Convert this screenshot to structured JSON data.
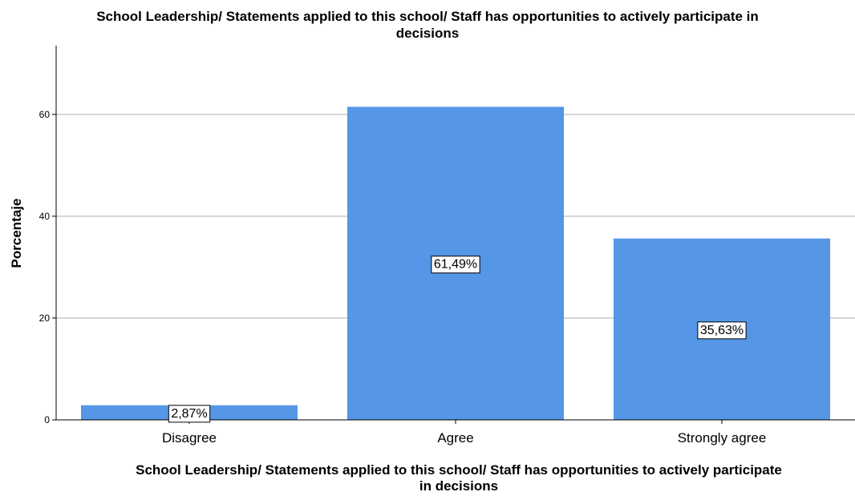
{
  "chart_data": {
    "type": "bar",
    "title": "School Leadership/ Statements applied to this school/ Staff has opportunities to actively participate in decisions",
    "title_lines": [
      "School Leadership/ Statements applied to this school/ Staff has opportunities to actively participate in",
      "decisions"
    ],
    "xlabel": "School Leadership/ Statements applied to this school/ Staff has opportunities to actively participate in decisions",
    "xlabel_lines": [
      "School Leadership/ Statements applied to this school/ Staff has opportunities to actively participate",
      "in decisions"
    ],
    "ylabel": "Porcentaje",
    "categories": [
      "Disagree",
      "Agree",
      "Strongly agree"
    ],
    "values": [
      2.87,
      61.49,
      35.63
    ],
    "data_labels": [
      "2,87%",
      "61,49%",
      "35,63%"
    ],
    "yticks": [
      0,
      20,
      40,
      60
    ],
    "ylim": [
      0,
      73.5
    ],
    "grid": true,
    "colors": {
      "bar": "#5596e6",
      "grid": "#c8c8c8",
      "axis": "#000000"
    }
  }
}
